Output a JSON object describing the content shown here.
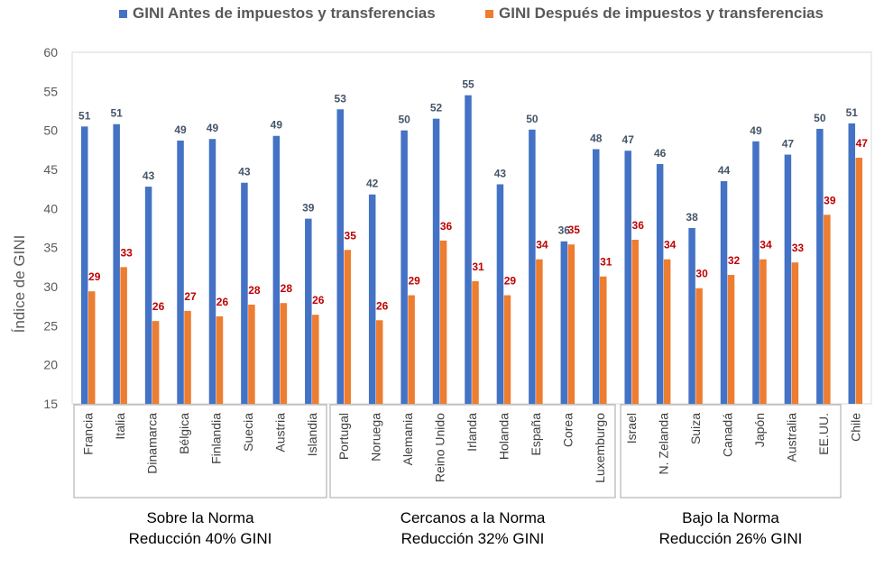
{
  "chart_data": {
    "type": "bar",
    "categories": [
      "Francia",
      "Italia",
      "Dinamarca",
      "Bélgica",
      "Finlandia",
      "Suecia",
      "Austria",
      "Islandia",
      "Portugal",
      "Noruega",
      "Alemania",
      "Reino Unido",
      "Irlanda",
      "Holanda",
      "España",
      "Corea",
      "Luxemburgo",
      "Israel",
      "N. Zelanda",
      "Suiza",
      "Canadá",
      "Japón",
      "Australia",
      "EE.UU.",
      "Chile"
    ],
    "series": [
      {
        "name": "GINI Antes de impuestos y transferencias",
        "color": "#4472C4",
        "label_color": "#44546A",
        "values": [
          50.5,
          50.8,
          42.8,
          48.7,
          48.9,
          43.3,
          49.3,
          38.7,
          52.7,
          41.8,
          50.0,
          51.5,
          54.5,
          43.1,
          50.1,
          35.8,
          47.6,
          47.4,
          45.7,
          37.5,
          43.5,
          48.6,
          46.9,
          50.2,
          50.9
        ],
        "labels": [
          "51",
          "51",
          "43",
          "49",
          "49",
          "43",
          "49",
          "39",
          "53",
          "42",
          "50",
          "52",
          "55",
          "43",
          "50",
          "36",
          "48",
          "47",
          "46",
          "38",
          "44",
          "49",
          "47",
          "50",
          "51"
        ]
      },
      {
        "name": "GINI Después de impuestos y transferencias",
        "color": "#ED7D31",
        "label_color": "#C00000",
        "values": [
          29.4,
          32.5,
          25.6,
          26.9,
          26.2,
          27.7,
          27.9,
          26.4,
          34.7,
          25.7,
          28.9,
          35.9,
          30.7,
          28.9,
          33.5,
          35.4,
          31.3,
          36.0,
          33.5,
          29.8,
          31.5,
          33.5,
          33.1,
          39.2,
          46.5
        ],
        "labels": [
          "29",
          "33",
          "26",
          "27",
          "26",
          "28",
          "28",
          "26",
          "35",
          "26",
          "29",
          "36",
          "31",
          "29",
          "34",
          "35",
          "31",
          "36",
          "34",
          "30",
          "32",
          "34",
          "33",
          "39",
          "47"
        ]
      }
    ],
    "ylabel": "Índice de GINI",
    "ylim": [
      15,
      60
    ],
    "yticks": [
      "15",
      "20",
      "25",
      "30",
      "35",
      "40",
      "45",
      "50",
      "55",
      "60"
    ],
    "grid": false,
    "legend": "top",
    "groups": [
      {
        "line1": "Sobre la Norma",
        "line2": "Reducción 40% GINI",
        "count": 8
      },
      {
        "line1": "Cercanos a la Norma",
        "line2": "Reducción 32% GINI",
        "count": 9
      },
      {
        "line1": "Bajo la Norma",
        "line2": "Reducción 26% GINI",
        "count": 7
      }
    ]
  }
}
